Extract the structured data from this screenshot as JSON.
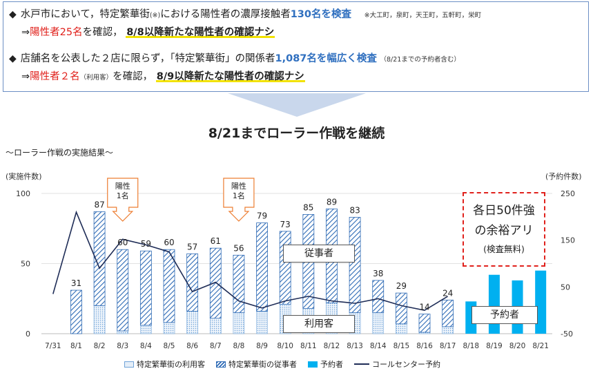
{
  "bullets": {
    "b1": {
      "symbol": "◆",
      "p1": "水戸市において，特定繁華街",
      "p1_note": "(※)",
      "p2": "における陽性者の濃厚接触者",
      "p3": "130名を検査",
      "note": "※大工町，泉町，天王町，五軒町，栄町",
      "arrow": "⇒",
      "p4": "陽性者25名",
      "p5": "を確認，",
      "p6": "8/8以降新たな陽性者の確認ナシ"
    },
    "b2": {
      "symbol": "◆",
      "p1": "店舗名を公表した２店に限らず，「特定繁華街」の関係者",
      "p2": "1,087名を幅広く検査",
      "note": "（8/21までの予約者含む）",
      "arrow": "⇒",
      "p3": "陽性者２名",
      "p3_note": "（利用客）",
      "p4": "を確認，",
      "p5": "8/9以降新たな陽性者の確認ナシ"
    }
  },
  "headline": "8/21までローラー作戦を継続",
  "subtitle": "～ローラー作戦の実施結果～",
  "y_left_title": "(実施件数)",
  "y_right_title": "(予約件数)",
  "callout": {
    "l1": "各日50件強",
    "l2": "の余裕アリ",
    "l3": "(検査無料)"
  },
  "series_tags": {
    "employees": "従事者",
    "customers": "利用客",
    "reservations": "予約者"
  },
  "positive_notes": [
    {
      "text": "陽性\n1名",
      "date": "8/3"
    },
    {
      "text": "陽性\n1名",
      "date": "8/8"
    }
  ],
  "legend": {
    "customers": "特定繁華街の利用客",
    "employees": "特定繁華街の従事者",
    "reservations": "予約者",
    "callcenter": "コールセンター予約"
  },
  "colors": {
    "employees": "#2d6ab5",
    "customers": "#6fa3d8",
    "reservations": "#00b0f0",
    "callcenter": "#1f2d57",
    "highlight_red": "#e0201b",
    "highlight_blue": "#2f6fbf"
  },
  "chart_data": {
    "type": "bar",
    "categories": [
      "7/31",
      "8/1",
      "8/2",
      "8/3",
      "8/4",
      "8/5",
      "8/6",
      "8/7",
      "8/8",
      "8/9",
      "8/10",
      "8/11",
      "8/12",
      "8/13",
      "8/14",
      "8/15",
      "8/16",
      "8/17",
      "8/18",
      "8/19",
      "8/20",
      "8/21"
    ],
    "series": [
      {
        "name": "特定繁華街の利用客",
        "kind": "stacked-bar",
        "axis": "left",
        "values": [
          0,
          0,
          20,
          2,
          6,
          8,
          16,
          11,
          15,
          16,
          21,
          18,
          22,
          15,
          15,
          7,
          1,
          5,
          0,
          0,
          0,
          0
        ]
      },
      {
        "name": "特定繁華街の従事者",
        "kind": "stacked-bar",
        "axis": "left",
        "values": [
          0,
          31,
          67,
          58,
          53,
          52,
          41,
          50,
          41,
          63,
          52,
          67,
          67,
          68,
          23,
          22,
          13,
          19,
          0,
          0,
          0,
          0
        ]
      },
      {
        "name": "予約者",
        "kind": "bar",
        "axis": "left",
        "values": [
          0,
          0,
          0,
          0,
          0,
          0,
          0,
          0,
          0,
          0,
          0,
          0,
          0,
          0,
          0,
          0,
          0,
          0,
          23,
          42,
          38,
          45
        ]
      },
      {
        "name": "コールセンター予約",
        "kind": "line",
        "axis": "right",
        "values": [
          35,
          210,
          90,
          152,
          140,
          125,
          40,
          60,
          20,
          5,
          20,
          30,
          20,
          15,
          25,
          10,
          0,
          30,
          null,
          null,
          null,
          null
        ]
      }
    ],
    "bar_totals": [
      null,
      31,
      87,
      60,
      59,
      60,
      57,
      61,
      56,
      79,
      73,
      85,
      89,
      83,
      38,
      29,
      14,
      24,
      null,
      null,
      null,
      null
    ],
    "y_left": {
      "min": 0,
      "max": 100,
      "ticks": [
        0,
        50,
        100
      ]
    },
    "y_right": {
      "min": -50,
      "max": 250,
      "ticks": [
        -50,
        50,
        150,
        250
      ]
    }
  }
}
